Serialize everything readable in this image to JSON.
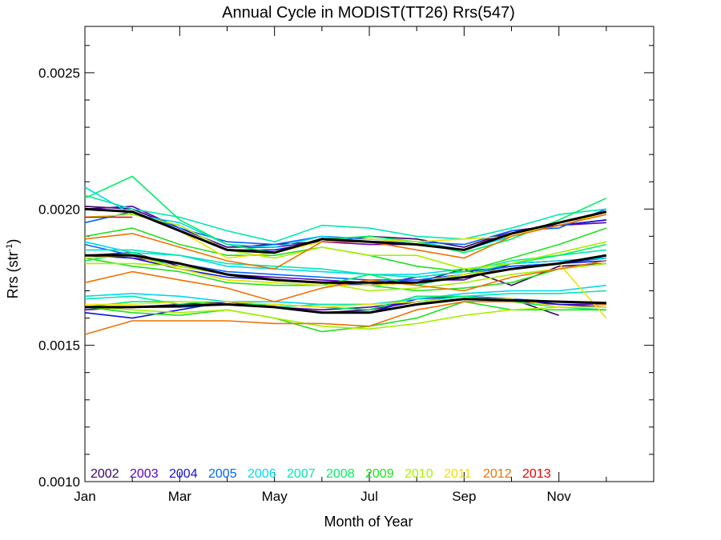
{
  "chart_data": {
    "type": "line",
    "title": "Annual Cycle in MODIST(TT26) Rrs(547)",
    "xlabel": "Month of Year",
    "ylabel_base": "Rrs (str",
    "ylabel_sup": "-1",
    "ylabel_end": ")",
    "xlim": [
      1,
      13
    ],
    "ylim": [
      0.001,
      0.00267
    ],
    "grid": false,
    "legend_position": "bottom-left, inside plot",
    "x_ticks": [
      {
        "v": 1,
        "label": "Jan"
      },
      {
        "v": 3,
        "label": "Mar"
      },
      {
        "v": 5,
        "label": "May"
      },
      {
        "v": 7,
        "label": "Jul"
      },
      {
        "v": 9,
        "label": "Sep"
      },
      {
        "v": 11,
        "label": "Nov"
      }
    ],
    "y_ticks": [
      {
        "v": 0.001,
        "label": "0.0010"
      },
      {
        "v": 0.0015,
        "label": "0.0015"
      },
      {
        "v": 0.002,
        "label": "0.0020"
      },
      {
        "v": 0.0025,
        "label": "0.0025"
      }
    ],
    "y_minor_ticks": [
      0.0011,
      0.0012,
      0.0013,
      0.0014,
      0.0016,
      0.0017,
      0.0018,
      0.0019,
      0.0021,
      0.0022,
      0.0023,
      0.0024,
      0.0026
    ],
    "x_minor_ticks": [
      2,
      4,
      6,
      8,
      10,
      12
    ],
    "series": [
      {
        "name": "2002",
        "color": "#3d0066",
        "lines": [
          [
            0.00201,
            0.002,
            0.00193,
            0.00186,
            0.00187,
            0.00188,
            0.0019,
            0.00189,
            0.00186,
            0.00192,
            0.00194,
            0.00196
          ],
          [
            0.00183,
            0.00184,
            0.00179,
            0.00176,
            0.00174,
            0.00173,
            0.00172,
            0.00173,
            0.00178,
            0.00172,
            0.00179,
            0.0018
          ],
          [
            0.00164,
            0.00164,
            0.00165,
            0.00166,
            0.00164,
            0.00162,
            0.00163,
            0.00166,
            0.00167,
            0.00167,
            0.00161,
            null
          ]
        ]
      },
      {
        "name": "2003",
        "color": "#5c00b8",
        "lines": [
          [
            0.002,
            0.00201,
            0.00193,
            0.00186,
            0.00186,
            0.00188,
            0.00187,
            0.00187,
            0.00185,
            0.00192,
            0.00194,
            0.00195
          ],
          [
            0.00183,
            0.00182,
            0.0018,
            0.00176,
            0.00175,
            0.00174,
            0.00173,
            0.00174,
            0.00174,
            0.0018,
            0.00181,
            0.00182
          ],
          [
            0.00163,
            0.00164,
            0.00164,
            0.00165,
            0.00164,
            0.00163,
            0.00164,
            0.00166,
            0.00167,
            0.00166,
            0.00165,
            0.00165
          ]
        ]
      },
      {
        "name": "2004",
        "color": "#1010e0",
        "lines": [
          [
            0.002,
            0.00199,
            0.00192,
            0.00185,
            0.00185,
            0.00188,
            0.00188,
            0.00188,
            0.00185,
            0.00191,
            0.00194,
            0.00196
          ],
          [
            0.00183,
            0.00182,
            0.00178,
            0.00175,
            0.00174,
            0.00173,
            0.00172,
            0.00175,
            0.00177,
            0.00179,
            0.0018,
            0.00181
          ],
          [
            0.00162,
            0.0016,
            0.00163,
            0.00166,
            0.00164,
            0.00162,
            0.00162,
            0.00167,
            0.00168,
            0.00167,
            0.00165,
            0.00164
          ]
        ]
      },
      {
        "name": "2005",
        "color": "#0066ff",
        "lines": [
          [
            0.00195,
            0.00199,
            0.00193,
            0.00188,
            0.00187,
            0.0019,
            0.00189,
            0.00188,
            0.00187,
            0.00192,
            0.00193,
            0.002
          ],
          [
            0.00187,
            0.00183,
            0.0018,
            0.00177,
            0.00176,
            0.00175,
            0.00174,
            0.00174,
            0.00176,
            0.00179,
            0.0018,
            0.00182
          ],
          [
            0.00164,
            0.00164,
            0.00164,
            0.00165,
            0.00165,
            0.00164,
            0.00163,
            0.00168,
            0.00168,
            0.00167,
            0.00166,
            0.00165
          ]
        ]
      },
      {
        "name": "2006",
        "color": "#00d8f0",
        "lines": [
          [
            0.00208,
            0.00198,
            0.00195,
            0.00187,
            0.00186,
            0.0019,
            0.00188,
            0.00188,
            0.00185,
            0.0019,
            0.00195,
            0.00199
          ],
          [
            0.00188,
            0.00184,
            0.00183,
            0.00179,
            0.00178,
            0.00177,
            0.00176,
            0.00176,
            0.00178,
            0.0018,
            0.00181,
            0.00182
          ],
          [
            0.00168,
            0.00169,
            0.00168,
            0.00166,
            0.00166,
            0.00165,
            0.00165,
            0.00167,
            0.00169,
            0.0017,
            0.0017,
            0.00172
          ]
        ]
      },
      {
        "name": "2007",
        "color": "#00e8b0",
        "lines": [
          [
            0.00205,
            0.002,
            0.00197,
            0.00192,
            0.00188,
            0.00194,
            0.00193,
            0.0019,
            0.00189,
            0.00193,
            0.00198,
            0.002
          ],
          [
            0.00185,
            0.00185,
            0.00183,
            0.0018,
            0.00179,
            0.00178,
            0.00176,
            0.00175,
            0.00177,
            0.00181,
            0.00183,
            0.00185
          ],
          [
            0.00167,
            0.00168,
            0.00165,
            0.00165,
            0.00164,
            0.00165,
            0.00165,
            0.00166,
            0.00168,
            0.00169,
            0.00169,
            0.0017
          ]
        ]
      },
      {
        "name": "2008",
        "color": "#00f060",
        "lines": [
          [
            0.00204,
            0.00212,
            0.00196,
            0.00187,
            0.00184,
            0.00189,
            0.0019,
            0.00188,
            0.00184,
            0.00189,
            0.00196,
            0.00204
          ],
          [
            0.00181,
            0.00184,
            0.00178,
            0.00174,
            0.00173,
            0.00172,
            0.00176,
            0.00172,
            0.00176,
            0.0018,
            0.00183,
            0.00187
          ],
          [
            0.00164,
            0.00166,
            0.00166,
            0.00165,
            0.00165,
            0.00164,
            0.00163,
            0.00168,
            0.00168,
            0.00166,
            0.00164,
            0.00163
          ]
        ]
      },
      {
        "name": "2009",
        "color": "#20e020",
        "lines": [
          [
            0.0019,
            0.00193,
            0.00187,
            0.00183,
            0.00183,
            0.00186,
            0.00183,
            0.00179,
            0.00177,
            0.00182,
            0.00187,
            0.00193
          ],
          [
            0.00182,
            0.00179,
            0.00177,
            0.00173,
            0.00172,
            0.00172,
            0.00172,
            0.0017,
            0.00171,
            0.00173,
            0.00178,
            0.0018
          ],
          [
            0.00164,
            0.00162,
            0.00161,
            0.00163,
            0.0016,
            0.00155,
            0.00157,
            0.0016,
            0.00166,
            0.00163,
            0.00163,
            0.00163
          ]
        ]
      },
      {
        "name": "2010",
        "color": "#a8f000",
        "lines": [
          [
            0.00197,
            0.00198,
            0.00194,
            0.00185,
            0.00182,
            0.00186,
            0.00183,
            0.00183,
            0.00178,
            0.0018,
            0.00184,
            0.00188
          ],
          [
            0.0018,
            0.0018,
            0.00179,
            0.00176,
            0.00174,
            0.00173,
            0.0017,
            0.00171,
            0.00173,
            0.00176,
            0.00178,
            0.0018
          ],
          [
            0.00164,
            0.00163,
            0.00162,
            0.00163,
            0.0016,
            0.00157,
            0.00156,
            0.00158,
            0.00161,
            0.00163,
            0.00164,
            0.00164
          ]
        ]
      },
      {
        "name": "2011",
        "color": "#f0e000",
        "lines": [
          [
            0.002,
            0.00199,
            0.00192,
            0.00182,
            0.00184,
            0.00188,
            0.00189,
            0.00188,
            0.00189,
            0.0019,
            0.00195,
            0.00198
          ],
          [
            0.00182,
            0.00183,
            0.00178,
            0.00174,
            0.00173,
            0.00172,
            0.00172,
            0.00173,
            0.00176,
            0.00178,
            0.0018,
            0.0016
          ],
          [
            0.00165,
            0.00165,
            0.00166,
            0.00166,
            0.00165,
            0.00164,
            0.00165,
            0.00166,
            0.00167,
            0.00167,
            0.00164,
            0.00164
          ]
        ]
      },
      {
        "name": "2012",
        "color": "#f07000",
        "lines": [
          [
            0.00189,
            0.00191,
            0.00186,
            0.00181,
            0.00178,
            0.00188,
            0.00188,
            0.00185,
            0.00182,
            0.0019,
            0.00194,
            0.00198
          ],
          [
            0.00173,
            0.00177,
            0.00174,
            0.00171,
            0.00166,
            0.00171,
            0.00174,
            0.00172,
            0.0017,
            0.00175,
            0.00178,
            0.00181
          ],
          [
            0.00154,
            0.00159,
            0.00159,
            0.00159,
            0.00158,
            0.00158,
            0.00157,
            0.00163,
            0.00166,
            0.00166,
            0.00166,
            0.00165
          ]
        ]
      },
      {
        "name": "2013",
        "color": "#e80000",
        "lines": [
          [
            0.00197,
            0.00197,
            null,
            null,
            null,
            null,
            null,
            null,
            null,
            null,
            null,
            null
          ]
        ]
      }
    ],
    "mean_lines": {
      "color": "#000000",
      "lines": [
        [
          0.002,
          0.00199,
          0.00192,
          0.00185,
          0.00184,
          0.00189,
          0.00188,
          0.00187,
          0.00185,
          0.00191,
          0.00195,
          0.00199
        ],
        [
          0.00183,
          0.00183,
          0.0018,
          0.00176,
          0.00174,
          0.00173,
          0.00173,
          0.00173,
          0.00175,
          0.00178,
          0.0018,
          0.00183
        ],
        [
          0.00164,
          0.00164,
          0.001645,
          0.00165,
          0.00164,
          0.00162,
          0.00162,
          0.00165,
          0.00167,
          0.001665,
          0.00166,
          0.001655
        ]
      ]
    }
  }
}
